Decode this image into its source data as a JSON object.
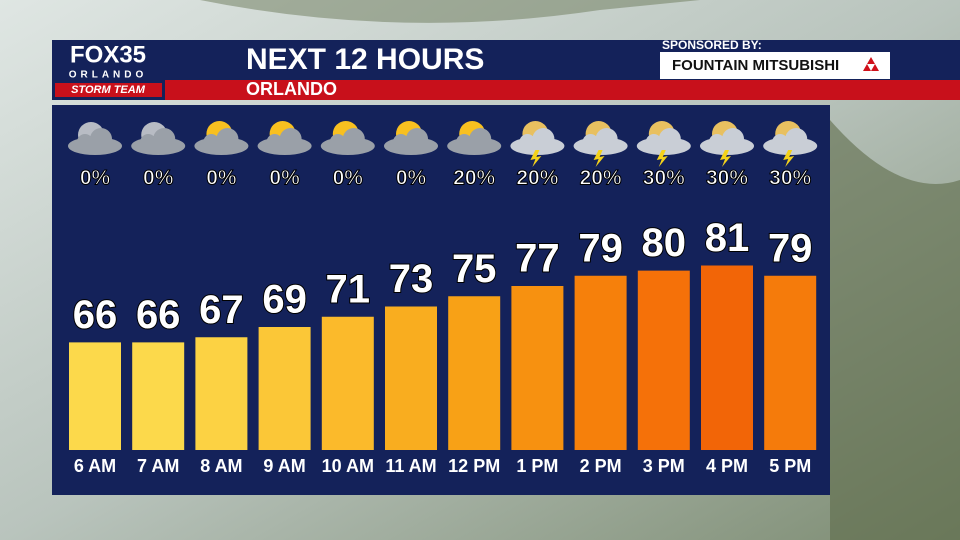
{
  "header": {
    "station": "FOX35",
    "city_brand": "ORLANDO",
    "team": "STORM TEAM",
    "sponsor_label": "SPONSORED BY:",
    "sponsor": "FOUNTAIN MITSUBISHI"
  },
  "chart_data": {
    "type": "bar",
    "title": "NEXT 12 HOURS",
    "subtitle": "ORLANDO",
    "categories": [
      "6 AM",
      "7 AM",
      "8 AM",
      "9 AM",
      "10 AM",
      "11 AM",
      "12 PM",
      "1 PM",
      "2 PM",
      "3 PM",
      "4 PM",
      "5 PM"
    ],
    "values": [
      66,
      66,
      67,
      69,
      71,
      73,
      75,
      77,
      79,
      80,
      81,
      79
    ],
    "colors": [
      "#fcd94b",
      "#fcd94b",
      "#fcd243",
      "#fbc737",
      "#fbba2b",
      "#f9ad1f",
      "#f8a116",
      "#f79110",
      "#f6800b",
      "#f57109",
      "#f26507",
      "#f57b0b"
    ],
    "precipitation": {
      "values": [
        0,
        0,
        0,
        0,
        0,
        0,
        20,
        20,
        20,
        30,
        30,
        30
      ],
      "value_labels": [
        "0%",
        "0%",
        "0%",
        "0%",
        "0%",
        "0%",
        "20%",
        "20%",
        "20%",
        "30%",
        "30%",
        "30%"
      ]
    },
    "ylim": [
      45,
      85
    ]
  }
}
